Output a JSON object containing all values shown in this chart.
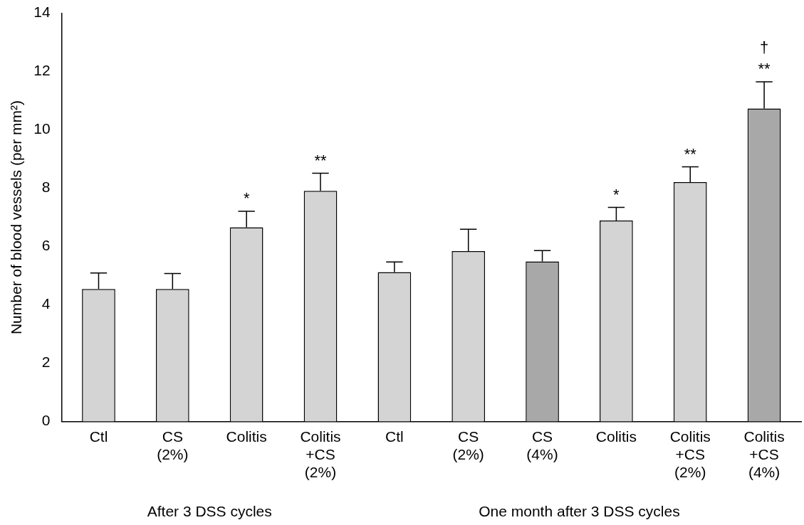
{
  "chart_data": {
    "type": "bar",
    "ylabel": "Number of blood vessels (per mm²)",
    "categories": [
      "Ctl",
      "CS\n(2%)",
      "Colitis",
      "Colitis\n+CS\n(2%)",
      "Ctl",
      "CS\n(2%)",
      "CS\n(4%)",
      "Colitis",
      "Colitis\n+CS\n(2%)",
      "Colitis\n+CS\n(4%)"
    ],
    "values": [
      4.54,
      4.54,
      6.66,
      7.91,
      5.12,
      5.84,
      5.49,
      6.89,
      8.21,
      10.73
    ],
    "errors": [
      [
        4.54,
        5.09
      ],
      [
        4.54,
        5.07
      ],
      [
        6.66,
        7.21
      ],
      [
        7.91,
        8.51
      ],
      [
        5.12,
        5.47
      ],
      [
        5.84,
        6.59
      ],
      [
        5.49,
        5.86
      ],
      [
        6.89,
        7.34
      ],
      [
        8.21,
        8.73
      ],
      [
        10.73,
        11.65
      ]
    ],
    "colors": [
      "#d4d4d4",
      "#d4d4d4",
      "#d4d4d4",
      "#d4d4d4",
      "#d4d4d4",
      "#d4d4d4",
      "#a8a8a8",
      "#d4d4d4",
      "#d4d4d4",
      "#a8a8a8"
    ],
    "value_labels": [
      null,
      null,
      "*",
      "**",
      null,
      null,
      null,
      "*",
      "**",
      "†\n**"
    ],
    "annotations": [
      "After 3 DSS cycles",
      "One month after 3 DSS cycles"
    ],
    "ylim": [
      0,
      14
    ],
    "yticks": [
      0,
      2,
      4,
      6,
      8,
      10,
      12,
      14
    ],
    "grid": false,
    "legend": false
  }
}
